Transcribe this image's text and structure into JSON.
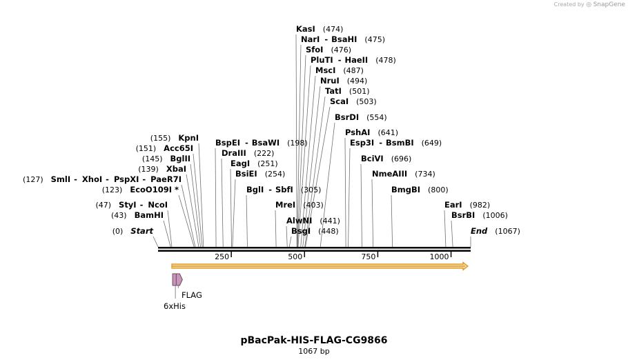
{
  "credit": {
    "prefix": "Created by",
    "brand": "SnapGene"
  },
  "map": {
    "title": "pBacPak-HIS-FLAG-CG9866",
    "subtitle": "1067 bp",
    "length": 1067,
    "ruler_ticks": [
      {
        "label": "250",
        "value": 250
      },
      {
        "label": "500",
        "value": 500
      },
      {
        "label": "750",
        "value": 750
      },
      {
        "label": "1000",
        "value": 1000
      }
    ],
    "ends": [
      {
        "id": "start",
        "name": "Start",
        "pos": "(0)",
        "site": 0
      },
      {
        "id": "end",
        "name": "End",
        "pos": "(1067)",
        "site": 1067
      }
    ],
    "sites": [
      {
        "id": "kasi",
        "names": [
          "KasI"
        ],
        "pos": "(474)",
        "site": 474
      },
      {
        "id": "nari",
        "names": [
          "NarI",
          "BsaHI"
        ],
        "pos": "(475)",
        "site": 475
      },
      {
        "id": "sfoi",
        "names": [
          "SfoI"
        ],
        "pos": "(476)",
        "site": 476
      },
      {
        "id": "pluti",
        "names": [
          "PluTI",
          "HaeII"
        ],
        "pos": "(478)",
        "site": 478
      },
      {
        "id": "msci",
        "names": [
          "MscI"
        ],
        "pos": "(487)",
        "site": 487
      },
      {
        "id": "nrui",
        "names": [
          "NruI"
        ],
        "pos": "(494)",
        "site": 494
      },
      {
        "id": "tati",
        "names": [
          "TatI"
        ],
        "pos": "(501)",
        "site": 501
      },
      {
        "id": "scai",
        "names": [
          "ScaI"
        ],
        "pos": "(503)",
        "site": 503
      },
      {
        "id": "bsrdi",
        "names": [
          "BsrDI"
        ],
        "pos": "(554)",
        "site": 554
      },
      {
        "id": "pshai",
        "names": [
          "PshAI"
        ],
        "pos": "(641)",
        "site": 641
      },
      {
        "id": "esp3i",
        "names": [
          "Esp3I",
          "BsmBI"
        ],
        "pos": "(649)",
        "site": 649
      },
      {
        "id": "bcivi",
        "names": [
          "BciVI"
        ],
        "pos": "(696)",
        "site": 696
      },
      {
        "id": "nmeaiii",
        "names": [
          "NmeAIII"
        ],
        "pos": "(734)",
        "site": 734
      },
      {
        "id": "bmgbi",
        "names": [
          "BmgBI"
        ],
        "pos": "(800)",
        "site": 800
      },
      {
        "id": "eari",
        "names": [
          "EarI"
        ],
        "pos": "(982)",
        "site": 982
      },
      {
        "id": "bsrbi",
        "names": [
          "BsrBI"
        ],
        "pos": "(1006)",
        "site": 1006
      },
      {
        "id": "kpni",
        "names": [
          "KpnI"
        ],
        "pos": "(155)",
        "site": 155
      },
      {
        "id": "acc65i",
        "names": [
          "Acc65I"
        ],
        "pos": "(151)",
        "site": 151
      },
      {
        "id": "bglii",
        "names": [
          "BglII"
        ],
        "pos": "(145)",
        "site": 145
      },
      {
        "id": "xbai",
        "names": [
          "XbaI"
        ],
        "pos": "(139)",
        "site": 139
      },
      {
        "id": "smli",
        "names": [
          "SmlI",
          "XhoI",
          "PspXI",
          "PaeR7I"
        ],
        "pos": "(127)",
        "site": 127
      },
      {
        "id": "ecoo109i",
        "names": [
          "EcoO109I *"
        ],
        "pos": "(123)",
        "site": 123
      },
      {
        "id": "styi",
        "names": [
          "StyI",
          "NcoI"
        ],
        "pos": "(47)",
        "site": 47
      },
      {
        "id": "bamhi",
        "names": [
          "BamHI"
        ],
        "pos": "(43)",
        "site": 43
      },
      {
        "id": "bspei",
        "names": [
          "BspEI",
          "BsaWI"
        ],
        "pos": "(198)",
        "site": 198
      },
      {
        "id": "draiii",
        "names": [
          "DraIII"
        ],
        "pos": "(222)",
        "site": 222
      },
      {
        "id": "eagi",
        "names": [
          "EagI"
        ],
        "pos": "(251)",
        "site": 251
      },
      {
        "id": "bsiei",
        "names": [
          "BsiEI"
        ],
        "pos": "(254)",
        "site": 254
      },
      {
        "id": "bgli",
        "names": [
          "BglI",
          "SbfI"
        ],
        "pos": "(305)",
        "site": 305
      },
      {
        "id": "mrei",
        "names": [
          "MreI"
        ],
        "pos": "(403)",
        "site": 403
      },
      {
        "id": "alwni",
        "names": [
          "AlwNI"
        ],
        "pos": "(441)",
        "site": 441
      },
      {
        "id": "bsgi",
        "names": [
          "BsgI"
        ],
        "pos": "(448)",
        "site": 448
      }
    ],
    "features": [
      {
        "id": "flag",
        "label": "FLAG",
        "start": 62,
        "end": 86
      },
      {
        "id": "his",
        "label": "6xHis",
        "start": 45,
        "end": 62
      }
    ],
    "colors": {
      "backbone": "#000000",
      "orf_fill": "#f9d9a4",
      "orf_stroke": "#d99012",
      "feature_fill": "#c896b8",
      "feature_stroke": "#6b4a60"
    }
  }
}
